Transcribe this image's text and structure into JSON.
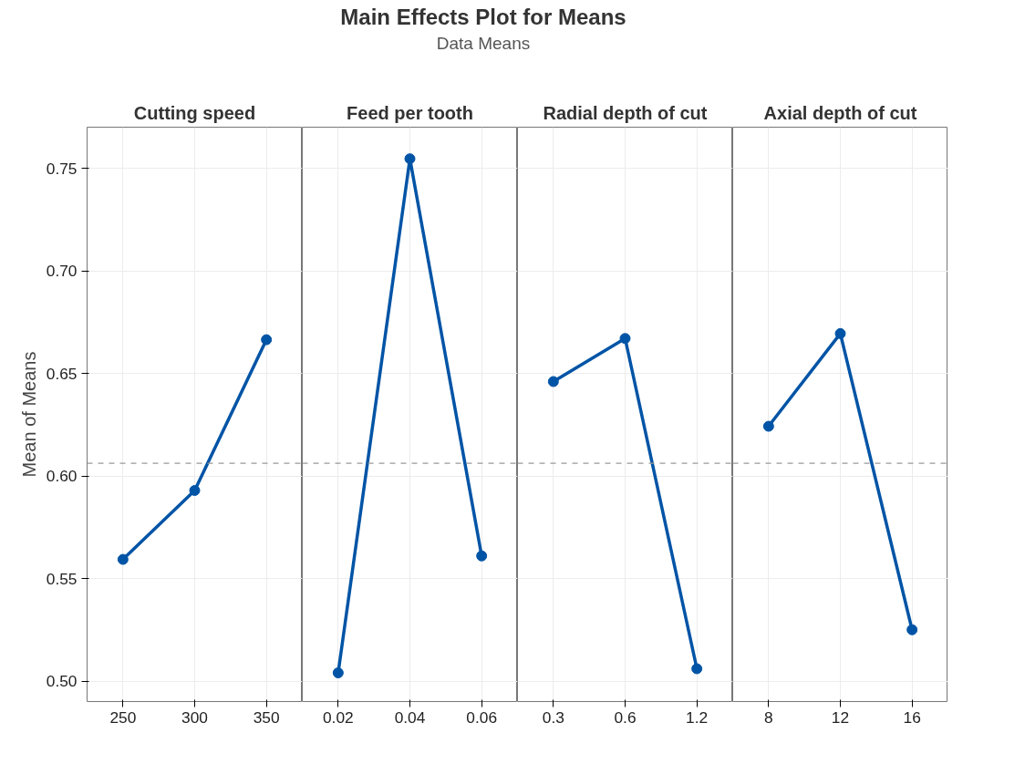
{
  "chart_data": [
    {
      "type": "other",
      "title": "Main Effects Plot for Means",
      "subtitle": "Data Means"
    },
    {
      "type": "line",
      "title": "Cutting speed",
      "ylabel": "Mean of Means",
      "categories": [
        "250",
        "300",
        "350"
      ],
      "series": [
        {
          "color": "#0054a6",
          "values": [
            0.5593,
            0.5929,
            0.6664
          ]
        }
      ],
      "ylim": [
        0.49,
        0.77
      ],
      "yticks": [
        {
          "value": 0.5,
          "label": "0.50"
        },
        0.55,
        {
          "value": 0.6,
          "label": "0.60"
        },
        0.65,
        {
          "value": 0.7,
          "label": "0.70"
        },
        0.75
      ],
      "ref_lines": [
        {
          "axis": "y",
          "value": 0.6062,
          "color": "#999999",
          "line_style": "dashed"
        }
      ],
      "grid": true,
      "marker": "circle",
      "line_style": "solid"
    },
    {
      "type": "line",
      "title": "Feed per tooth",
      "categories": [
        "0.02",
        "0.04",
        "0.06"
      ],
      "series": [
        {
          "color": "#0054a6",
          "values": [
            0.504,
            0.7546,
            0.561
          ]
        }
      ],
      "ylim": [
        0.49,
        0.77
      ],
      "yticks": [
        0.5,
        0.55,
        0.6,
        0.65,
        0.7,
        0.75
      ],
      "tick_labels": "x",
      "ref_lines": [
        {
          "axis": "y",
          "value": 0.6062,
          "color": "#999999",
          "line_style": "dashed"
        }
      ],
      "grid": true,
      "marker": "circle",
      "line_style": "solid"
    },
    {
      "type": "line",
      "title": "Radial depth of cut",
      "categories": [
        "0.3",
        "0.6",
        "1.2"
      ],
      "series": [
        {
          "color": "#0054a6",
          "values": [
            0.646,
            0.667,
            0.506
          ]
        }
      ],
      "ylim": [
        0.49,
        0.77
      ],
      "yticks": [
        0.5,
        0.55,
        0.6,
        0.65,
        0.7,
        0.75
      ],
      "tick_labels": "x",
      "ref_lines": [
        {
          "axis": "y",
          "value": 0.6062,
          "color": "#999999",
          "line_style": "dashed"
        }
      ],
      "grid": true,
      "marker": "circle",
      "line_style": "solid"
    },
    {
      "type": "line",
      "title": "Axial depth of cut",
      "categories": [
        "8",
        "12",
        "16"
      ],
      "series": [
        {
          "color": "#0054a6",
          "values": [
            0.6242,
            0.6694,
            0.525
          ]
        }
      ],
      "ylim": [
        0.49,
        0.77
      ],
      "yticks": [
        0.5,
        0.55,
        0.6,
        0.65,
        0.7,
        0.75
      ],
      "tick_labels": "x",
      "ref_lines": [
        {
          "axis": "y",
          "value": 0.6062,
          "color": "#999999",
          "line_style": "dashed"
        }
      ],
      "grid": true,
      "marker": "circle",
      "line_style": "solid"
    }
  ]
}
